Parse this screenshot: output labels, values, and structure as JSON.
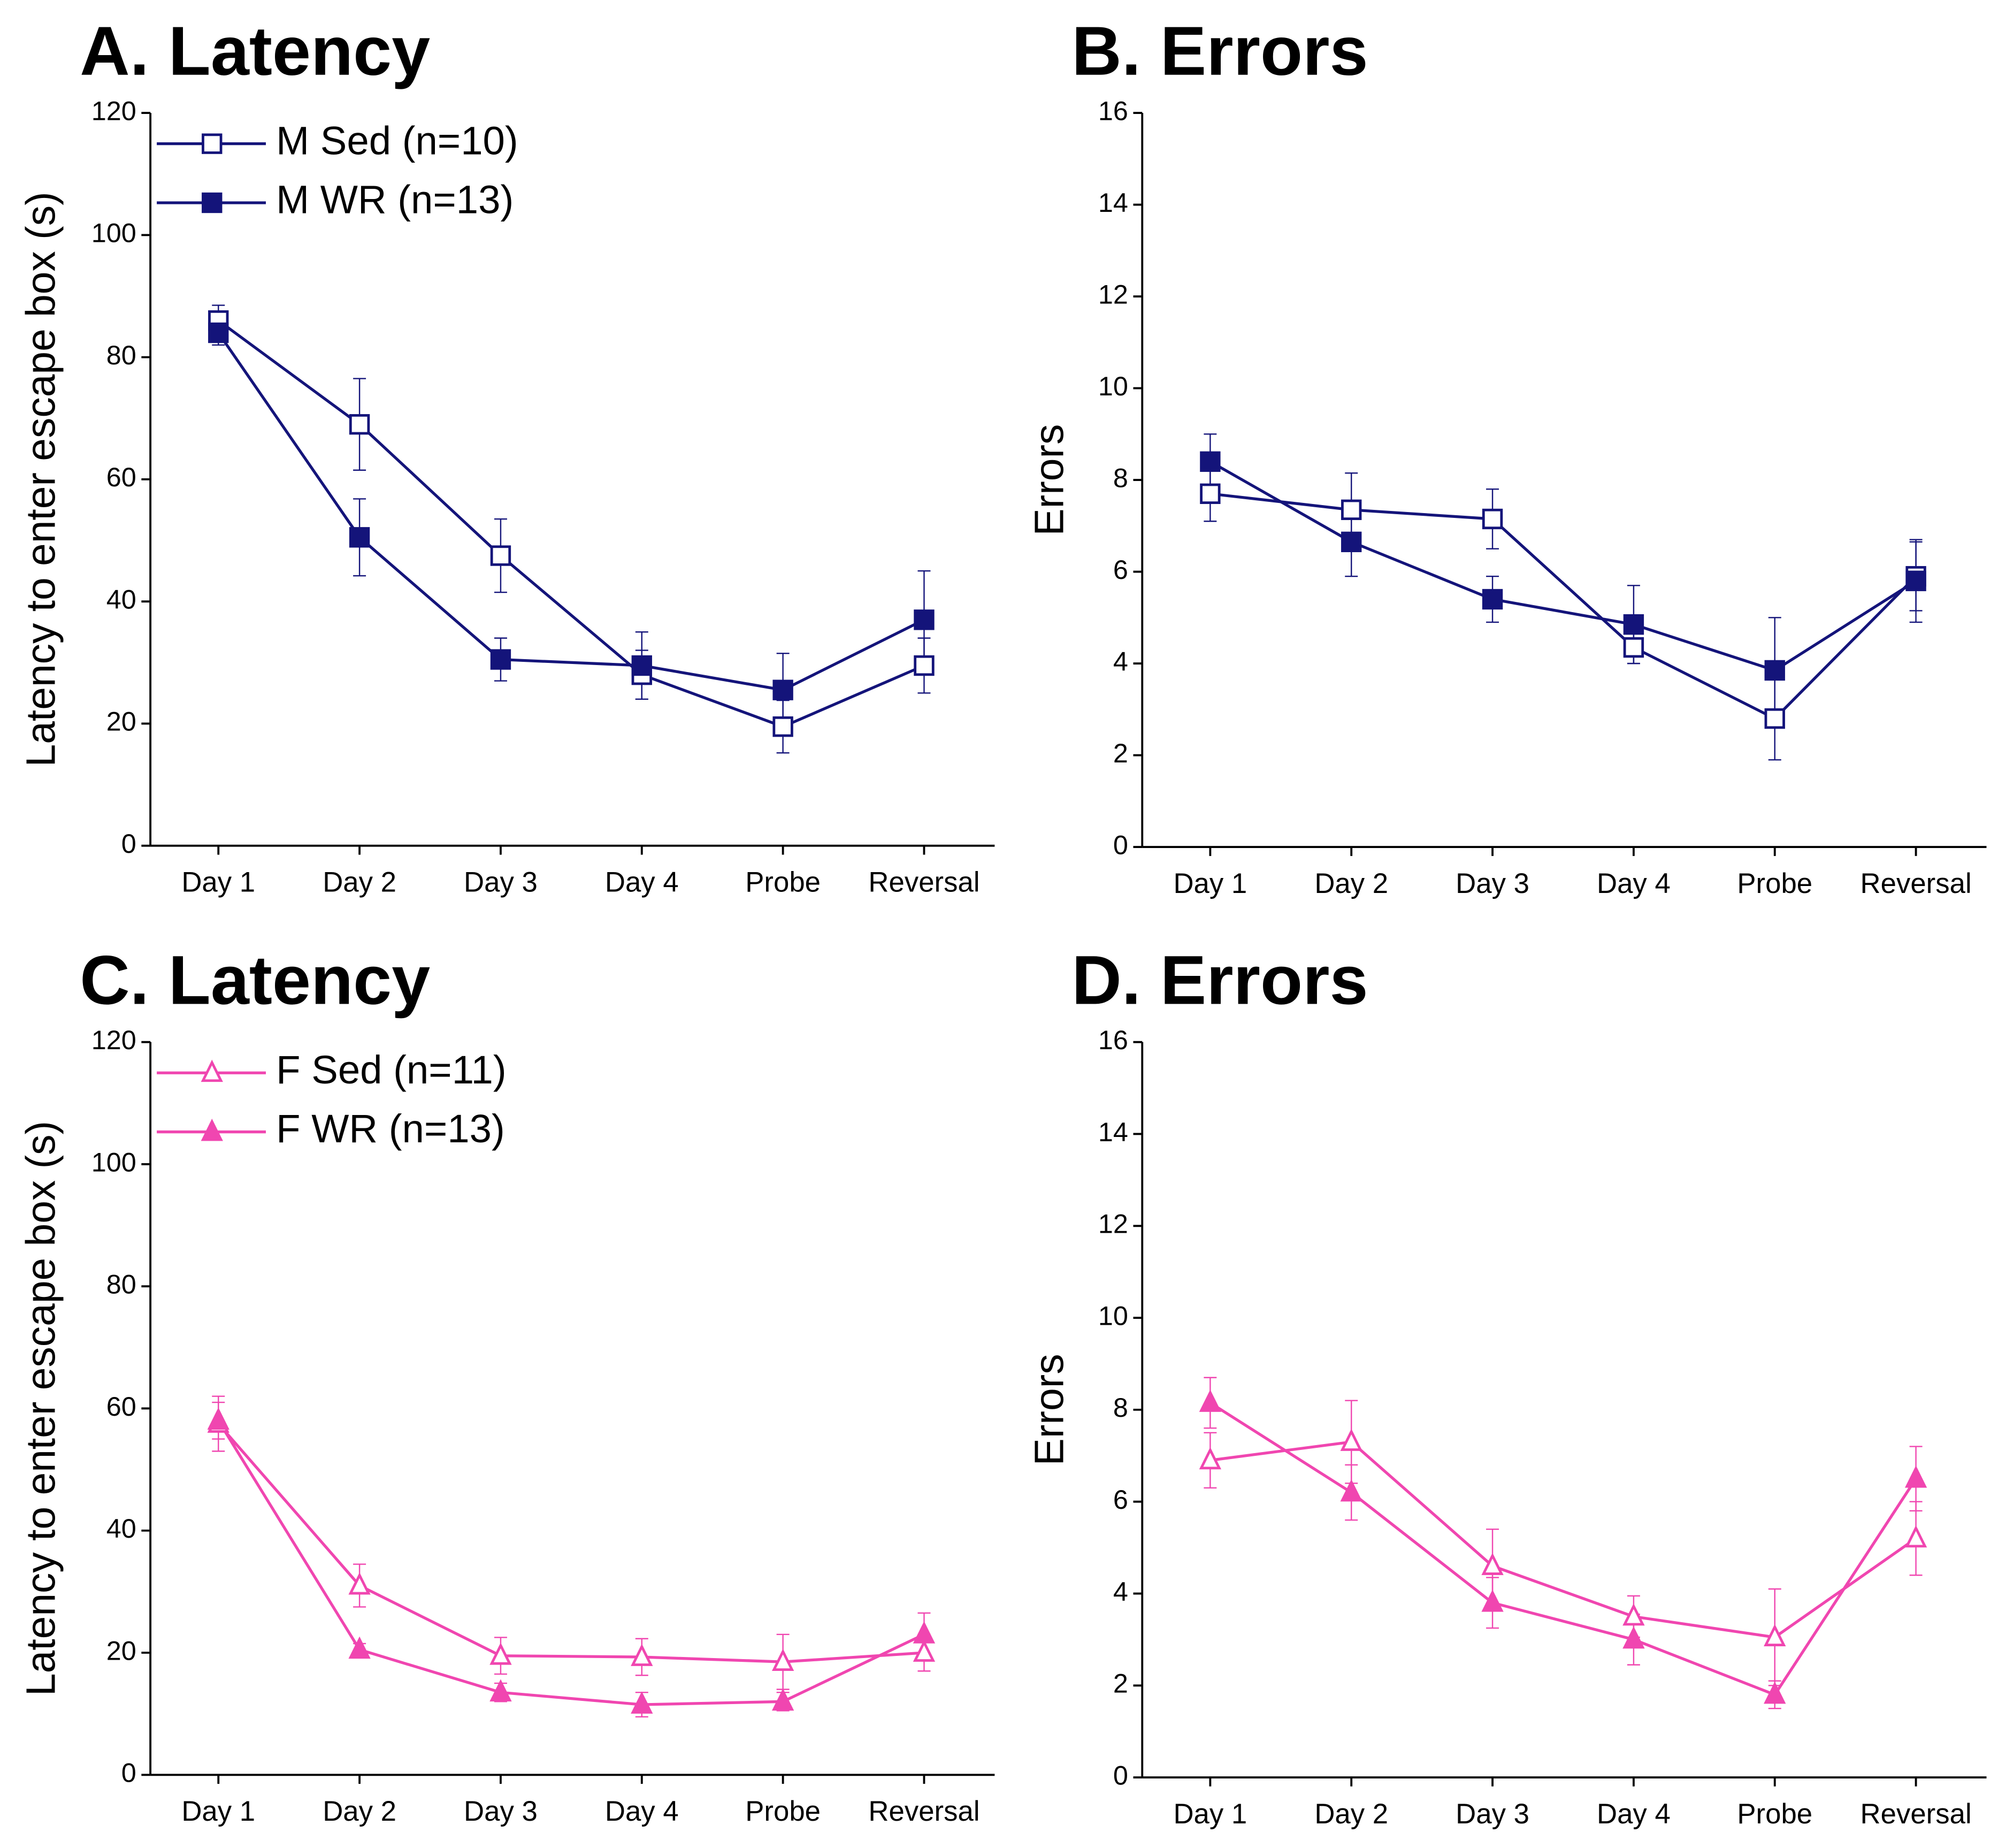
{
  "chart_data": [
    {
      "type": "line",
      "title": "A. Latency",
      "ylabel": "Latency to enter escape box (s)",
      "categories": [
        "Day 1",
        "Day 2",
        "Day 3",
        "Day 4",
        "Probe",
        "Reversal"
      ],
      "ylim": [
        0,
        120
      ],
      "yticks": [
        0,
        20,
        40,
        60,
        80,
        100,
        120
      ],
      "legend": "upper left",
      "series": [
        {
          "name": "M Sed (n=10)",
          "color": "#14147a",
          "marker": "square",
          "filled": false,
          "values": [
            86,
            69,
            47.5,
            28,
            19.5,
            29.5
          ],
          "errors": [
            2.5,
            7.5,
            6,
            4,
            4.3,
            4.5
          ]
        },
        {
          "name": "M WR (n=13)",
          "color": "#14147a",
          "marker": "square",
          "filled": true,
          "values": [
            84,
            50.5,
            30.5,
            29.5,
            25.5,
            37
          ],
          "errors": [
            2,
            6.3,
            3.5,
            5.5,
            6,
            8
          ]
        }
      ]
    },
    {
      "type": "line",
      "title": "B. Errors",
      "ylabel": "Errors",
      "categories": [
        "Day 1",
        "Day 2",
        "Day 3",
        "Day 4",
        "Probe",
        "Reversal"
      ],
      "ylim": [
        0,
        16
      ],
      "yticks": [
        0,
        2,
        4,
        6,
        8,
        10,
        12,
        14,
        16
      ],
      "series": [
        {
          "name": "M Sed (n=10)",
          "color": "#14147a",
          "marker": "square",
          "filled": false,
          "values": [
            7.7,
            7.35,
            7.15,
            4.35,
            2.8,
            5.9
          ],
          "errors": [
            0.6,
            0.8,
            0.65,
            0.35,
            0.9,
            0.75
          ]
        },
        {
          "name": "M WR (n=13)",
          "color": "#14147a",
          "marker": "square",
          "filled": true,
          "values": [
            8.4,
            6.65,
            5.4,
            4.85,
            3.85,
            5.8
          ],
          "errors": [
            0.6,
            0.75,
            0.5,
            0.85,
            1.15,
            0.9
          ]
        }
      ]
    },
    {
      "type": "line",
      "title": "C. Latency",
      "ylabel": "Latency to enter escape box (s)",
      "categories": [
        "Day 1",
        "Day 2",
        "Day 3",
        "Day 4",
        "Probe",
        "Reversal"
      ],
      "ylim": [
        0,
        120
      ],
      "yticks": [
        0,
        20,
        40,
        60,
        80,
        100,
        120
      ],
      "legend": "upper left",
      "series": [
        {
          "name": "F Sed (n=11)",
          "color": "#f046b0",
          "marker": "triangle",
          "filled": false,
          "values": [
            57.5,
            31,
            19.5,
            19.3,
            18.5,
            20
          ],
          "errors": [
            4.5,
            3.5,
            3,
            3,
            4.5,
            3
          ]
        },
        {
          "name": "F WR (n=13)",
          "color": "#f046b0",
          "marker": "triangle",
          "filled": true,
          "values": [
            58,
            20.5,
            13.5,
            11.5,
            12,
            23
          ],
          "errors": [
            3,
            1,
            1.5,
            2,
            1.5,
            3.5
          ]
        }
      ]
    },
    {
      "type": "line",
      "title": "D. Errors",
      "ylabel": "Errors",
      "categories": [
        "Day 1",
        "Day 2",
        "Day 3",
        "Day 4",
        "Probe",
        "Reversal"
      ],
      "ylim": [
        0,
        16
      ],
      "yticks": [
        0,
        2,
        4,
        6,
        8,
        10,
        12,
        14,
        16
      ],
      "series": [
        {
          "name": "F Sed (n=11)",
          "color": "#f046b0",
          "marker": "triangle",
          "filled": false,
          "values": [
            6.9,
            7.3,
            4.6,
            3.5,
            3.05,
            5.2
          ],
          "errors": [
            0.6,
            0.9,
            0.8,
            0.45,
            1.05,
            0.8
          ]
        },
        {
          "name": "F WR (n=13)",
          "color": "#f046b0",
          "marker": "triangle",
          "filled": true,
          "values": [
            8.15,
            6.2,
            3.8,
            3.0,
            1.8,
            6.5
          ],
          "errors": [
            0.55,
            0.6,
            0.55,
            0.55,
            0.3,
            0.7
          ]
        }
      ]
    }
  ]
}
